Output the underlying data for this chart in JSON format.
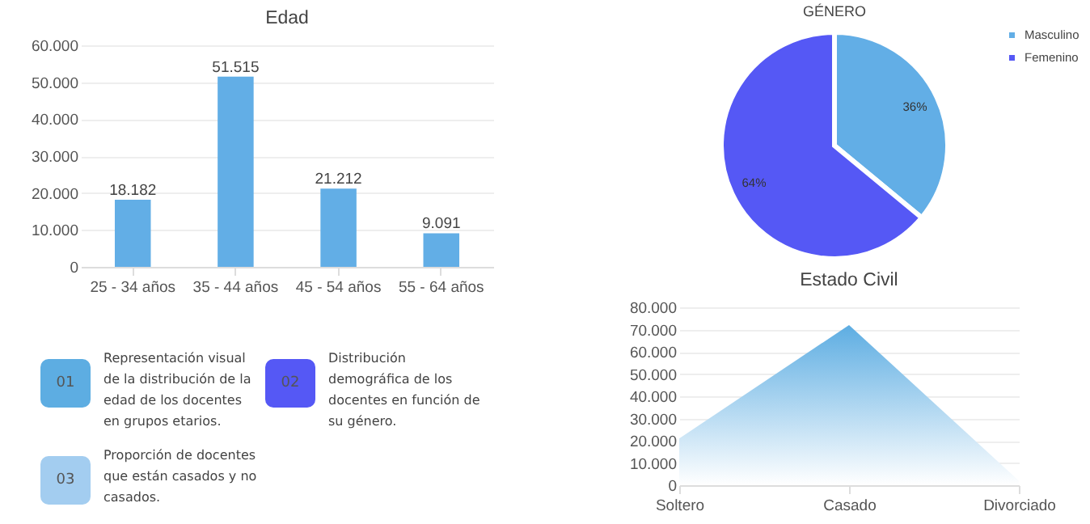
{
  "chart_data": [
    {
      "type": "bar",
      "title": "Edad",
      "categories": [
        "25 - 34 años",
        "35 - 44 años",
        "45 - 54 años",
        "55 - 64 años"
      ],
      "values": [
        18182,
        51515,
        21212,
        9091
      ],
      "value_labels": [
        "18.182",
        "51.515",
        "21.212",
        "9.091"
      ],
      "color": "#62aee6",
      "ylim": [
        0,
        60000
      ],
      "yticks": [
        0,
        {
          "value": 10000,
          "label": "10.000"
        },
        {
          "value": 20000,
          "label": "20.000"
        },
        {
          "value": 30000,
          "label": "30.000"
        },
        {
          "value": 40000,
          "label": "40.000"
        },
        {
          "value": 50000,
          "label": "50.000"
        },
        {
          "value": 60000,
          "label": "60.000"
        }
      ],
      "grid": "y"
    },
    {
      "type": "pie",
      "title": "GÉNERO",
      "categories": [
        "Masculino",
        "Femenino"
      ],
      "values": [
        36,
        64
      ],
      "colors": [
        "#62aee6",
        "#5558f5"
      ],
      "value_labels": [
        "36%",
        "64%"
      ],
      "legend": "right"
    },
    {
      "type": "area",
      "title": "Estado Civil",
      "categories": [
        "Soltero",
        "Casado",
        "Divorciado"
      ],
      "values": [
        21000,
        72000,
        2000
      ],
      "color": "#5dade2",
      "ylim": [
        0,
        80000
      ],
      "yticks": [
        0,
        {
          "value": 10000,
          "label": "10.000"
        },
        {
          "value": 20000,
          "label": "20.000"
        },
        {
          "value": 30000,
          "label": "30.000"
        },
        {
          "value": 40000,
          "label": "40.000"
        },
        {
          "value": 50000,
          "label": "50.000"
        },
        {
          "value": 60000,
          "label": "60.000"
        },
        {
          "value": 70000,
          "label": "70.000"
        },
        {
          "value": 80000,
          "label": "80.000"
        }
      ],
      "grid": "y"
    },
    {
      "type": "other",
      "categories": [
        "01",
        "02",
        "03"
      ],
      "colors": [
        "#5dade2",
        "#5558f5",
        "#a3cdf0"
      ],
      "annotations": [
        "Representación visual de la distribución de la edad de los docentes en grupos etarios.",
        "Distribución demográfica de los docentes en función de su género.",
        "Proporción de docentes que están casados y no casados."
      ]
    }
  ]
}
